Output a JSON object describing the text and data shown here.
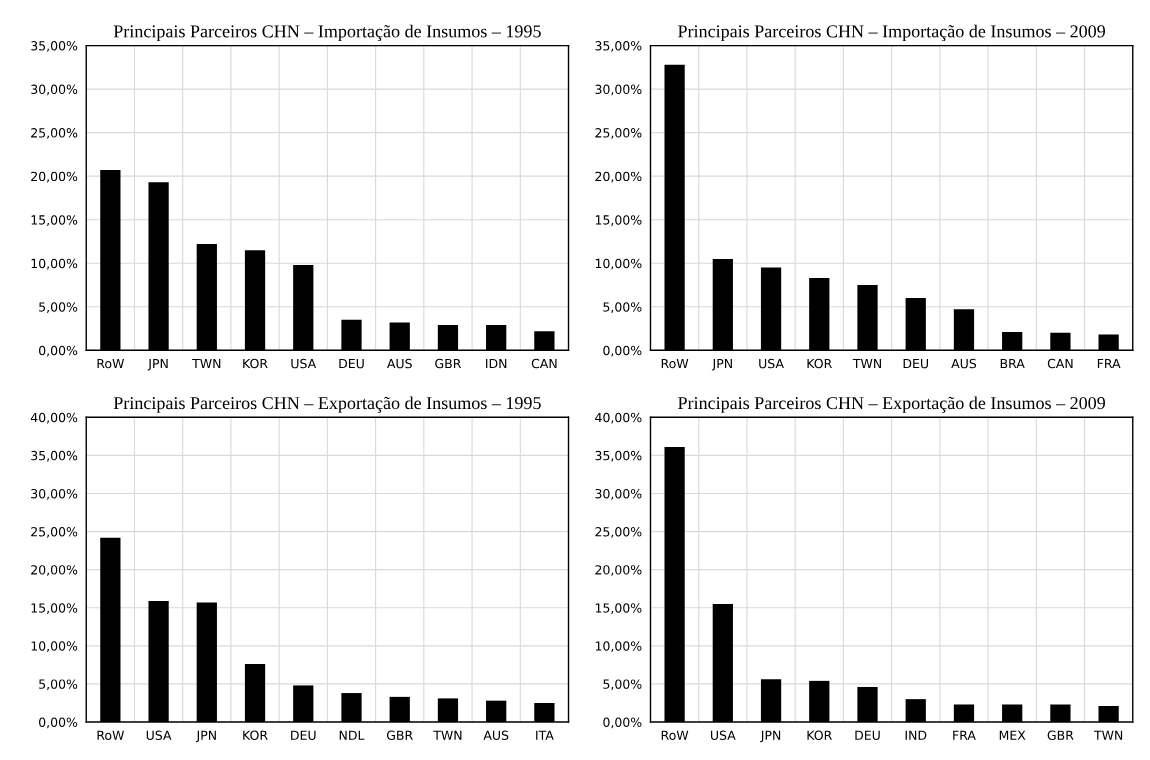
{
  "chart_data": [
    {
      "type": "bar",
      "title": "Principais Parceiros CHN – Importação de Insumos – 1995",
      "categories": [
        "RoW",
        "JPN",
        "TWN",
        "KOR",
        "USA",
        "DEU",
        "AUS",
        "GBR",
        "IDN",
        "CAN"
      ],
      "values": [
        20.7,
        19.3,
        12.2,
        11.5,
        9.8,
        3.5,
        3.2,
        2.9,
        2.9,
        2.2
      ],
      "color": "#000000",
      "ylim": [
        0,
        35
      ],
      "yticks": [
        {
          "value": 0,
          "label": "0,00%"
        },
        {
          "value": 5,
          "label": "5,00%"
        },
        {
          "value": 10,
          "label": "10,00%"
        },
        {
          "value": 15,
          "label": "15,00%"
        },
        {
          "value": 20,
          "label": "20,00%"
        },
        {
          "value": 25,
          "label": "25,00%"
        },
        {
          "value": 30,
          "label": "30,00%"
        },
        {
          "value": 35,
          "label": "35,00%"
        }
      ],
      "grid": true
    },
    {
      "type": "bar",
      "title": "Principais Parceiros CHN – Importação de Insumos – 2009",
      "categories": [
        "RoW",
        "JPN",
        "USA",
        "KOR",
        "TWN",
        "DEU",
        "AUS",
        "BRA",
        "CAN",
        "FRA"
      ],
      "values": [
        32.8,
        10.5,
        9.5,
        8.3,
        7.5,
        6.0,
        4.7,
        2.1,
        2.0,
        1.8
      ],
      "color": "#000000",
      "ylim": [
        0,
        35
      ],
      "yticks": [
        {
          "value": 0,
          "label": "0,00%"
        },
        {
          "value": 5,
          "label": "5,00%"
        },
        {
          "value": 10,
          "label": "10,00%"
        },
        {
          "value": 15,
          "label": "15,00%"
        },
        {
          "value": 20,
          "label": "20,00%"
        },
        {
          "value": 25,
          "label": "25,00%"
        },
        {
          "value": 30,
          "label": "30,00%"
        },
        {
          "value": 35,
          "label": "35,00%"
        }
      ],
      "grid": true
    },
    {
      "type": "bar",
      "title": "Principais Parceiros CHN – Exportação de Insumos – 1995",
      "categories": [
        "RoW",
        "USA",
        "JPN",
        "KOR",
        "DEU",
        "NDL",
        "GBR",
        "TWN",
        "AUS",
        "ITA"
      ],
      "values": [
        24.2,
        15.9,
        15.7,
        7.6,
        4.8,
        3.8,
        3.3,
        3.1,
        2.8,
        2.5
      ],
      "color": "#000000",
      "ylim": [
        0,
        40
      ],
      "yticks": [
        {
          "value": 0,
          "label": "0,00%"
        },
        {
          "value": 5,
          "label": "5,00%"
        },
        {
          "value": 10,
          "label": "10,00%"
        },
        {
          "value": 15,
          "label": "15,00%"
        },
        {
          "value": 20,
          "label": "20,00%"
        },
        {
          "value": 25,
          "label": "25,00%"
        },
        {
          "value": 30,
          "label": "30,00%"
        },
        {
          "value": 35,
          "label": "35,00%"
        },
        {
          "value": 40,
          "label": "40,00%"
        }
      ],
      "grid": true
    },
    {
      "type": "bar",
      "title": "Principais Parceiros CHN – Exportação de Insumos – 2009",
      "categories": [
        "RoW",
        "USA",
        "JPN",
        "KOR",
        "DEU",
        "IND",
        "FRA",
        "MEX",
        "GBR",
        "TWN"
      ],
      "values": [
        36.1,
        15.5,
        5.6,
        5.4,
        4.6,
        3.0,
        2.3,
        2.3,
        2.3,
        2.1
      ],
      "color": "#000000",
      "ylim": [
        0,
        40
      ],
      "yticks": [
        {
          "value": 0,
          "label": "0,00%"
        },
        {
          "value": 5,
          "label": "5,00%"
        },
        {
          "value": 10,
          "label": "10,00%"
        },
        {
          "value": 15,
          "label": "15,00%"
        },
        {
          "value": 20,
          "label": "20,00%"
        },
        {
          "value": 25,
          "label": "25,00%"
        },
        {
          "value": 30,
          "label": "30,00%"
        },
        {
          "value": 35,
          "label": "35,00%"
        },
        {
          "value": 40,
          "label": "40,00%"
        }
      ],
      "grid": true
    }
  ]
}
